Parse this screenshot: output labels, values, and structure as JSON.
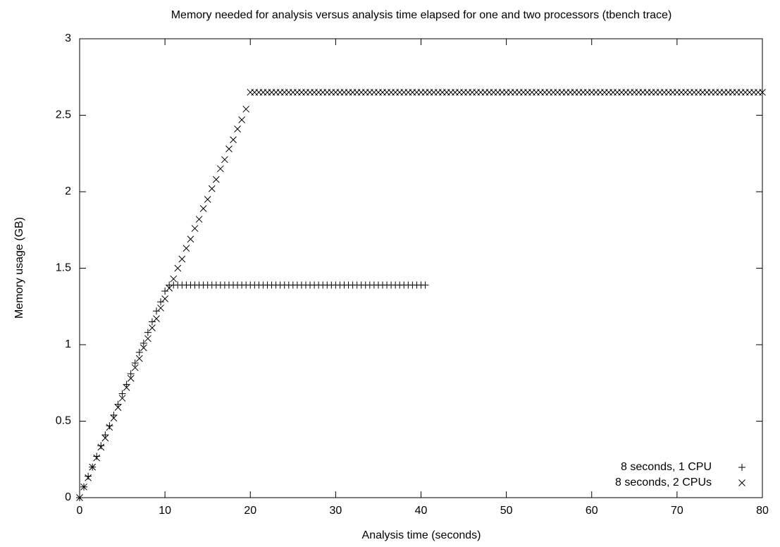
{
  "chart_data": {
    "type": "scatter",
    "title": "Memory needed for analysis versus analysis time elapsed for one and two processors (tbench trace)",
    "x_label": "Analysis time (seconds)",
    "y_label": "Memory usage (GB)",
    "xlim": [
      0,
      80
    ],
    "xticks": [
      0,
      10,
      20,
      30,
      40,
      50,
      60,
      70,
      80
    ],
    "ylim": [
      0,
      3
    ],
    "yticks": [
      0,
      0.5,
      1,
      1.5,
      2,
      2.5,
      3
    ],
    "grid": false,
    "legend": "bottom-right",
    "series": [
      {
        "name": "8 seconds, 1 CPU",
        "color": "#000000",
        "marker": "+",
        "x": [
          0,
          0.5,
          1,
          1.5,
          2,
          2.5,
          3,
          3.5,
          4,
          4.5,
          5,
          5.5,
          6,
          6.5,
          7,
          7.5,
          8,
          8.5,
          9,
          9.5,
          10,
          10.5,
          11,
          11.5,
          12,
          12.5,
          13,
          13.5,
          14,
          14.5,
          15,
          15.5,
          16,
          16.5,
          17,
          17.5,
          18,
          18.5,
          19,
          19.5,
          20,
          20.5,
          21,
          21.5,
          22,
          22.5,
          23,
          23.5,
          24,
          24.5,
          25,
          25.5,
          26,
          26.5,
          27,
          27.5,
          28,
          28.5,
          29,
          29.5,
          30,
          30.5,
          31,
          31.5,
          32,
          32.5,
          33,
          33.5,
          34,
          34.5,
          35,
          35.5,
          36,
          36.5,
          37,
          37.5,
          38,
          38.5,
          39,
          39.5,
          40,
          40.5
        ],
        "values": [
          0,
          0.07,
          0.14,
          0.2,
          0.27,
          0.34,
          0.41,
          0.47,
          0.54,
          0.61,
          0.68,
          0.74,
          0.81,
          0.88,
          0.95,
          1.01,
          1.08,
          1.15,
          1.22,
          1.28,
          1.35,
          1.39,
          1.39,
          1.39,
          1.39,
          1.39,
          1.39,
          1.39,
          1.39,
          1.39,
          1.39,
          1.39,
          1.39,
          1.39,
          1.39,
          1.39,
          1.39,
          1.39,
          1.39,
          1.39,
          1.39,
          1.39,
          1.39,
          1.39,
          1.39,
          1.39,
          1.39,
          1.39,
          1.39,
          1.39,
          1.39,
          1.39,
          1.39,
          1.39,
          1.39,
          1.39,
          1.39,
          1.39,
          1.39,
          1.39,
          1.39,
          1.39,
          1.39,
          1.39,
          1.39,
          1.39,
          1.39,
          1.39,
          1.39,
          1.39,
          1.39,
          1.39,
          1.39,
          1.39,
          1.39,
          1.39,
          1.39,
          1.39,
          1.39,
          1.39,
          1.39,
          1.39
        ]
      },
      {
        "name": "8 seconds, 2 CPUs",
        "color": "#000000",
        "marker": "x",
        "x": [
          0,
          0.5,
          1,
          1.5,
          2,
          2.5,
          3,
          3.5,
          4,
          4.5,
          5,
          5.5,
          6,
          6.5,
          7,
          7.5,
          8,
          8.5,
          9,
          9.5,
          10,
          10.5,
          11,
          11.5,
          12,
          12.5,
          13,
          13.5,
          14,
          14.5,
          15,
          15.5,
          16,
          16.5,
          17,
          17.5,
          18,
          18.5,
          19,
          19.5,
          20,
          20.5,
          21,
          21.5,
          22,
          22.5,
          23,
          23.5,
          24,
          24.5,
          25,
          25.5,
          26,
          26.5,
          27,
          27.5,
          28,
          28.5,
          29,
          29.5,
          30,
          30.5,
          31,
          31.5,
          32,
          32.5,
          33,
          33.5,
          34,
          34.5,
          35,
          35.5,
          36,
          36.5,
          37,
          37.5,
          38,
          38.5,
          39,
          39.5,
          40,
          40.5,
          41,
          41.5,
          42,
          42.5,
          43,
          43.5,
          44,
          44.5,
          45,
          45.5,
          46,
          46.5,
          47,
          47.5,
          48,
          48.5,
          49,
          49.5,
          50,
          50.5,
          51,
          51.5,
          52,
          52.5,
          53,
          53.5,
          54,
          54.5,
          55,
          55.5,
          56,
          56.5,
          57,
          57.5,
          58,
          58.5,
          59,
          59.5,
          60,
          60.5,
          61,
          61.5,
          62,
          62.5,
          63,
          63.5,
          64,
          64.5,
          65,
          65.5,
          66,
          66.5,
          67,
          67.5,
          68,
          68.5,
          69,
          69.5,
          70,
          70.5,
          71,
          71.5,
          72,
          72.5,
          73,
          73.5,
          74,
          74.5,
          75,
          75.5,
          76,
          76.5,
          77,
          77.5,
          78,
          78.5,
          79,
          79.5,
          80
        ],
        "values": [
          0,
          0.07,
          0.13,
          0.2,
          0.26,
          0.33,
          0.39,
          0.46,
          0.52,
          0.59,
          0.65,
          0.72,
          0.78,
          0.85,
          0.91,
          0.98,
          1.04,
          1.11,
          1.17,
          1.24,
          1.3,
          1.37,
          1.43,
          1.5,
          1.56,
          1.63,
          1.69,
          1.76,
          1.82,
          1.89,
          1.95,
          2.02,
          2.08,
          2.15,
          2.21,
          2.28,
          2.34,
          2.41,
          2.47,
          2.54,
          2.65,
          2.65,
          2.65,
          2.65,
          2.65,
          2.65,
          2.65,
          2.65,
          2.65,
          2.65,
          2.65,
          2.65,
          2.65,
          2.65,
          2.65,
          2.65,
          2.65,
          2.65,
          2.65,
          2.65,
          2.65,
          2.65,
          2.65,
          2.65,
          2.65,
          2.65,
          2.65,
          2.65,
          2.65,
          2.65,
          2.65,
          2.65,
          2.65,
          2.65,
          2.65,
          2.65,
          2.65,
          2.65,
          2.65,
          2.65,
          2.65,
          2.65,
          2.65,
          2.65,
          2.65,
          2.65,
          2.65,
          2.65,
          2.65,
          2.65,
          2.65,
          2.65,
          2.65,
          2.65,
          2.65,
          2.65,
          2.65,
          2.65,
          2.65,
          2.65,
          2.65,
          2.65,
          2.65,
          2.65,
          2.65,
          2.65,
          2.65,
          2.65,
          2.65,
          2.65,
          2.65,
          2.65,
          2.65,
          2.65,
          2.65,
          2.65,
          2.65,
          2.65,
          2.65,
          2.65,
          2.65,
          2.65,
          2.65,
          2.65,
          2.65,
          2.65,
          2.65,
          2.65,
          2.65,
          2.65,
          2.65,
          2.65,
          2.65,
          2.65,
          2.65,
          2.65,
          2.65,
          2.65,
          2.65,
          2.65,
          2.65,
          2.65,
          2.65,
          2.65,
          2.65,
          2.65,
          2.65,
          2.65,
          2.65,
          2.65,
          2.65,
          2.65,
          2.65,
          2.65,
          2.65,
          2.65,
          2.65,
          2.65,
          2.65,
          2.65,
          2.65
        ]
      }
    ]
  }
}
